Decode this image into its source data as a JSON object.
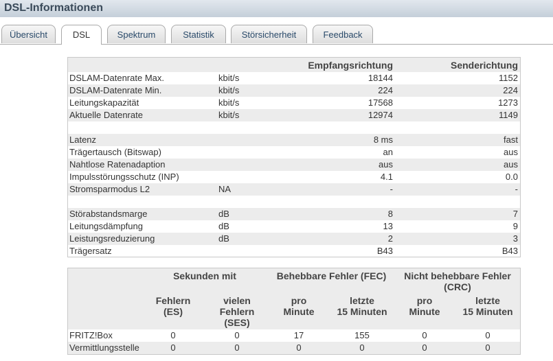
{
  "header": {
    "title": "DSL-Informationen"
  },
  "tabs": [
    "Übersicht",
    "DSL",
    "Spektrum",
    "Statistik",
    "Störsicherheit",
    "Feedback"
  ],
  "line_table": {
    "columns": [
      "Empfangsrichtung",
      "Senderichtung"
    ],
    "sections": [
      [
        {
          "label": "DSLAM-Datenrate Max.",
          "unit": "kbit/s",
          "rx": "18144",
          "tx": "1152"
        },
        {
          "label": "DSLAM-Datenrate Min.",
          "unit": "kbit/s",
          "rx": "224",
          "tx": "224"
        },
        {
          "label": "Leitungskapazität",
          "unit": "kbit/s",
          "rx": "17568",
          "tx": "1273"
        },
        {
          "label": "Aktuelle Datenrate",
          "unit": "kbit/s",
          "rx": "12974",
          "tx": "1149"
        }
      ],
      [
        {
          "label": "Latenz",
          "rx": "8 ms",
          "tx": "fast"
        },
        {
          "label": "Trägertausch (Bitswap)",
          "rx": "an",
          "tx": "aus"
        },
        {
          "label": "Nahtlose Ratenadaption",
          "rx": "aus",
          "tx": "aus"
        },
        {
          "label": "Impulsstörungsschutz (INP)",
          "rx": "4.1",
          "tx": "0.0"
        },
        {
          "label": "Stromsparmodus L2",
          "unit": "NA",
          "rx": "-",
          "tx": "-"
        }
      ],
      [
        {
          "label": "Störabstandsmarge",
          "unit": "dB",
          "rx": "8",
          "tx": "7"
        },
        {
          "label": "Leitungsdämpfung",
          "unit": "dB",
          "rx": "13",
          "tx": "9"
        },
        {
          "label": "Leistungsreduzierung",
          "unit": "dB",
          "rx": "2",
          "tx": "3"
        },
        {
          "label": "Trägersatz",
          "rx": "B43",
          "tx": "B43"
        }
      ]
    ]
  },
  "error_table": {
    "groups": [
      "Sekunden mit",
      "Behebbare Fehler (FEC)",
      "Nicht behebbare Fehler (CRC)"
    ],
    "subheaders": [
      "Fehlern\n(ES)",
      "vielen\nFehlern\n(SES)",
      "pro\nMinute",
      "letzte\n15 Minuten",
      "pro\nMinute",
      "letzte\n15 Minuten"
    ],
    "rows": [
      {
        "label": "FRITZ!Box",
        "values": [
          "0",
          "0",
          "17",
          "155",
          "0",
          "0"
        ]
      },
      {
        "label": "Vermittlungsstelle",
        "values": [
          "0",
          "0",
          "0",
          "0",
          "0",
          "0"
        ]
      }
    ]
  }
}
